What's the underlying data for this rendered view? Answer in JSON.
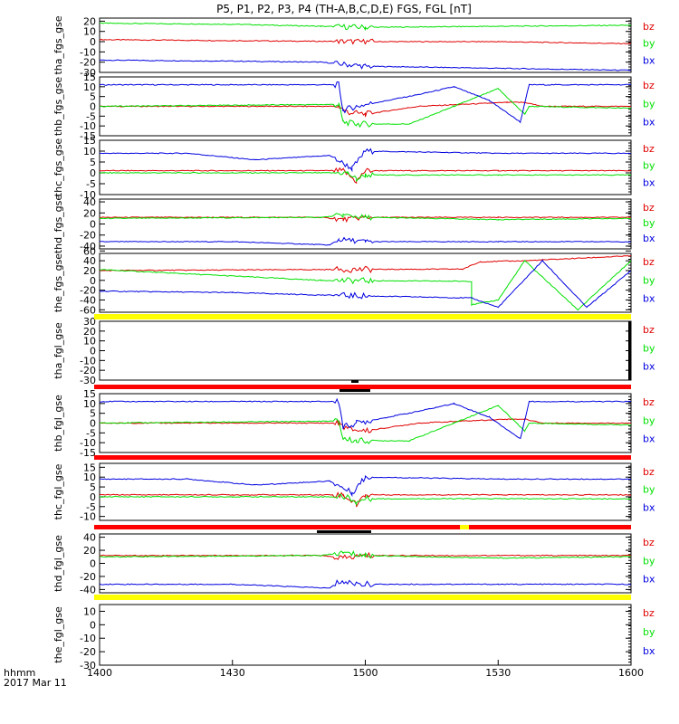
{
  "title": "P5, P1, P2, P3, P4 (TH-A,B,C,D,E) FGS, FGL [nT]",
  "colors": {
    "bz": "#e00000",
    "by": "#00e000",
    "bx": "#0000e0",
    "yellow": "#ffff00",
    "red": "#ff0000"
  },
  "legend": [
    "bz",
    "by",
    "bx"
  ],
  "x_axis": {
    "labels": [
      "1400",
      "1430",
      "1500",
      "1530",
      "1600"
    ],
    "range": [
      0,
      120
    ],
    "unit_label": "hhmm",
    "date_label": "2017 Mar 11"
  },
  "chart_data": [
    {
      "type": "line",
      "ylabel": "tha_fgs_gse",
      "ylim": [
        -30,
        23
      ],
      "yticks": [
        "20",
        "10",
        "0",
        "-10",
        "-20",
        "-30"
      ],
      "series": [
        {
          "name": "bz",
          "values": [
            [
              0,
              2
            ],
            [
              30,
              1
            ],
            [
              60,
              0
            ],
            [
              90,
              0
            ],
            [
              120,
              -2
            ]
          ]
        },
        {
          "name": "by",
          "values": [
            [
              0,
              18
            ],
            [
              30,
              17
            ],
            [
              50,
              15
            ],
            [
              60,
              14
            ],
            [
              90,
              15
            ],
            [
              120,
              16
            ]
          ]
        },
        {
          "name": "bx",
          "values": [
            [
              0,
              -18
            ],
            [
              30,
              -19
            ],
            [
              50,
              -20
            ],
            [
              60,
              -24
            ],
            [
              90,
              -26
            ],
            [
              120,
              -28
            ]
          ]
        }
      ]
    },
    {
      "type": "line",
      "ylabel": "thb_fgs_gse",
      "ylim": [
        -15,
        15
      ],
      "yticks": [
        "15",
        "10",
        "5",
        "0",
        "-5",
        "-10",
        "-15"
      ],
      "series": [
        {
          "name": "bz",
          "values": [
            [
              0,
              0
            ],
            [
              54,
              0
            ],
            [
              56,
              -3
            ],
            [
              60,
              -4
            ],
            [
              72,
              0
            ],
            [
              92,
              2
            ],
            [
              96,
              2
            ],
            [
              100,
              0
            ],
            [
              120,
              0
            ]
          ]
        },
        {
          "name": "by",
          "values": [
            [
              0,
              0
            ],
            [
              54,
              1
            ],
            [
              55,
              -8
            ],
            [
              58,
              -9
            ],
            [
              70,
              -9
            ],
            [
              80,
              0
            ],
            [
              90,
              9
            ],
            [
              96,
              -4
            ],
            [
              97,
              0
            ],
            [
              120,
              -1
            ]
          ]
        },
        {
          "name": "bx",
          "values": [
            [
              0,
              11
            ],
            [
              54,
              11
            ],
            [
              55,
              -2
            ],
            [
              58,
              0
            ],
            [
              72,
              6
            ],
            [
              80,
              10
            ],
            [
              88,
              3
            ],
            [
              95,
              -8
            ],
            [
              97,
              11
            ],
            [
              120,
              11
            ]
          ]
        }
      ]
    },
    {
      "type": "line",
      "ylabel": "thc_fgs_gse",
      "ylim": [
        -10,
        15
      ],
      "yticks": [
        "15",
        "10",
        "5",
        "0",
        "-5",
        "-10"
      ],
      "series": [
        {
          "name": "bz",
          "values": [
            [
              0,
              1
            ],
            [
              30,
              1
            ],
            [
              55,
              1
            ],
            [
              58,
              -4
            ],
            [
              60,
              1
            ],
            [
              90,
              1
            ],
            [
              120,
              1
            ]
          ]
        },
        {
          "name": "by",
          "values": [
            [
              0,
              0
            ],
            [
              30,
              0
            ],
            [
              56,
              0
            ],
            [
              58,
              -3
            ],
            [
              60,
              -1
            ],
            [
              90,
              -1
            ],
            [
              120,
              -1
            ]
          ]
        },
        {
          "name": "bx",
          "values": [
            [
              0,
              9
            ],
            [
              20,
              9
            ],
            [
              35,
              6
            ],
            [
              52,
              8
            ],
            [
              57,
              2
            ],
            [
              60,
              10
            ],
            [
              90,
              9
            ],
            [
              120,
              9
            ]
          ]
        }
      ]
    },
    {
      "type": "line",
      "ylabel": "thd_fgs_gse",
      "ylim": [
        -45,
        45
      ],
      "yticks": [
        "40",
        "20",
        "0",
        "-20",
        "-40"
      ],
      "series": [
        {
          "name": "bz",
          "values": [
            [
              0,
              12
            ],
            [
              50,
              12
            ],
            [
              55,
              8
            ],
            [
              60,
              12
            ],
            [
              90,
              12
            ],
            [
              120,
              12
            ]
          ]
        },
        {
          "name": "by",
          "values": [
            [
              0,
              10
            ],
            [
              50,
              12
            ],
            [
              55,
              16
            ],
            [
              60,
              12
            ],
            [
              90,
              8
            ],
            [
              120,
              10
            ]
          ]
        },
        {
          "name": "bx",
          "values": [
            [
              0,
              -32
            ],
            [
              30,
              -32
            ],
            [
              52,
              -38
            ],
            [
              54,
              -28
            ],
            [
              60,
              -32
            ],
            [
              90,
              -32
            ],
            [
              120,
              -32
            ]
          ]
        }
      ]
    },
    {
      "type": "line",
      "ylabel": "the_fgs_gse",
      "ylim": [
        -65,
        55
      ],
      "yticks": [
        "60",
        "40",
        "20",
        "0",
        "-20",
        "-40",
        "-60"
      ],
      "series": [
        {
          "name": "bz",
          "values": [
            [
              0,
              20
            ],
            [
              50,
              22
            ],
            [
              82,
              23
            ],
            [
              86,
              38
            ],
            [
              96,
              40
            ],
            [
              120,
              50
            ]
          ]
        },
        {
          "name": "by",
          "values": [
            [
              0,
              22
            ],
            [
              50,
              0
            ],
            [
              84,
              -2
            ],
            [
              84,
              -50
            ],
            [
              90,
              -40
            ],
            [
              96,
              40
            ],
            [
              108,
              -60
            ],
            [
              120,
              40
            ]
          ]
        },
        {
          "name": "bx",
          "values": [
            [
              0,
              -22
            ],
            [
              30,
              -25
            ],
            [
              50,
              -30
            ],
            [
              84,
              -36
            ],
            [
              90,
              -55
            ],
            [
              100,
              40
            ],
            [
              110,
              -55
            ],
            [
              120,
              20
            ]
          ]
        }
      ]
    },
    {
      "type": "line",
      "ylabel": "tha_fgl_gse",
      "ylim": [
        -30,
        30
      ],
      "yticks": [
        "30",
        "20",
        "10",
        "0",
        "-10",
        "-20",
        "-30"
      ],
      "series": []
    },
    {
      "type": "line",
      "ylabel": "thb_fgl_gse",
      "ylim": [
        -15,
        15
      ],
      "yticks": [
        "15",
        "10",
        "5",
        "0",
        "-5",
        "-10",
        "-15"
      ],
      "series": [
        {
          "name": "bz",
          "values": [
            [
              0,
              0
            ],
            [
              54,
              0
            ],
            [
              56,
              -3
            ],
            [
              60,
              -4
            ],
            [
              72,
              0
            ],
            [
              92,
              2
            ],
            [
              96,
              2
            ],
            [
              100,
              0
            ],
            [
              120,
              0
            ]
          ]
        },
        {
          "name": "by",
          "values": [
            [
              0,
              0
            ],
            [
              54,
              1
            ],
            [
              55,
              -8
            ],
            [
              58,
              -9
            ],
            [
              70,
              -9
            ],
            [
              80,
              0
            ],
            [
              90,
              9
            ],
            [
              96,
              -4
            ],
            [
              97,
              0
            ],
            [
              120,
              -1
            ]
          ]
        },
        {
          "name": "bx",
          "values": [
            [
              0,
              11
            ],
            [
              54,
              11
            ],
            [
              55,
              -2
            ],
            [
              58,
              0
            ],
            [
              72,
              6
            ],
            [
              80,
              10
            ],
            [
              88,
              3
            ],
            [
              95,
              -8
            ],
            [
              97,
              11
            ],
            [
              120,
              11
            ]
          ]
        }
      ]
    },
    {
      "type": "line",
      "ylabel": "thc_fgl_gse",
      "ylim": [
        -12,
        17
      ],
      "yticks": [
        "15",
        "10",
        "5",
        "0",
        "-5",
        "-10"
      ],
      "series": [
        {
          "name": "bz",
          "values": [
            [
              0,
              1
            ],
            [
              30,
              1
            ],
            [
              55,
              1
            ],
            [
              58,
              -4
            ],
            [
              60,
              1
            ],
            [
              90,
              1
            ],
            [
              120,
              1
            ]
          ]
        },
        {
          "name": "by",
          "values": [
            [
              0,
              0
            ],
            [
              30,
              0
            ],
            [
              56,
              0
            ],
            [
              58,
              -3
            ],
            [
              60,
              -1
            ],
            [
              90,
              -1
            ],
            [
              120,
              -1
            ]
          ]
        },
        {
          "name": "bx",
          "values": [
            [
              0,
              9
            ],
            [
              20,
              9
            ],
            [
              35,
              6
            ],
            [
              52,
              8
            ],
            [
              57,
              2
            ],
            [
              60,
              10
            ],
            [
              90,
              9
            ],
            [
              120,
              9
            ]
          ]
        }
      ]
    },
    {
      "type": "line",
      "ylabel": "thd_fgl_gse",
      "ylim": [
        -45,
        45
      ],
      "yticks": [
        "40",
        "20",
        "0",
        "-20",
        "-40"
      ],
      "series": [
        {
          "name": "bz",
          "values": [
            [
              0,
              12
            ],
            [
              50,
              12
            ],
            [
              55,
              8
            ],
            [
              60,
              12
            ],
            [
              90,
              12
            ],
            [
              120,
              12
            ]
          ]
        },
        {
          "name": "by",
          "values": [
            [
              0,
              10
            ],
            [
              50,
              12
            ],
            [
              55,
              16
            ],
            [
              60,
              12
            ],
            [
              90,
              8
            ],
            [
              120,
              10
            ]
          ]
        },
        {
          "name": "bx",
          "values": [
            [
              0,
              -32
            ],
            [
              30,
              -32
            ],
            [
              52,
              -38
            ],
            [
              54,
              -28
            ],
            [
              60,
              -32
            ],
            [
              90,
              -32
            ],
            [
              120,
              -32
            ]
          ]
        }
      ]
    },
    {
      "type": "line",
      "ylabel": "the_fgl_gse",
      "ylim": [
        -30,
        15
      ],
      "yticks": [
        "10",
        "0",
        "-10",
        "-20",
        "-30"
      ],
      "series": []
    }
  ]
}
